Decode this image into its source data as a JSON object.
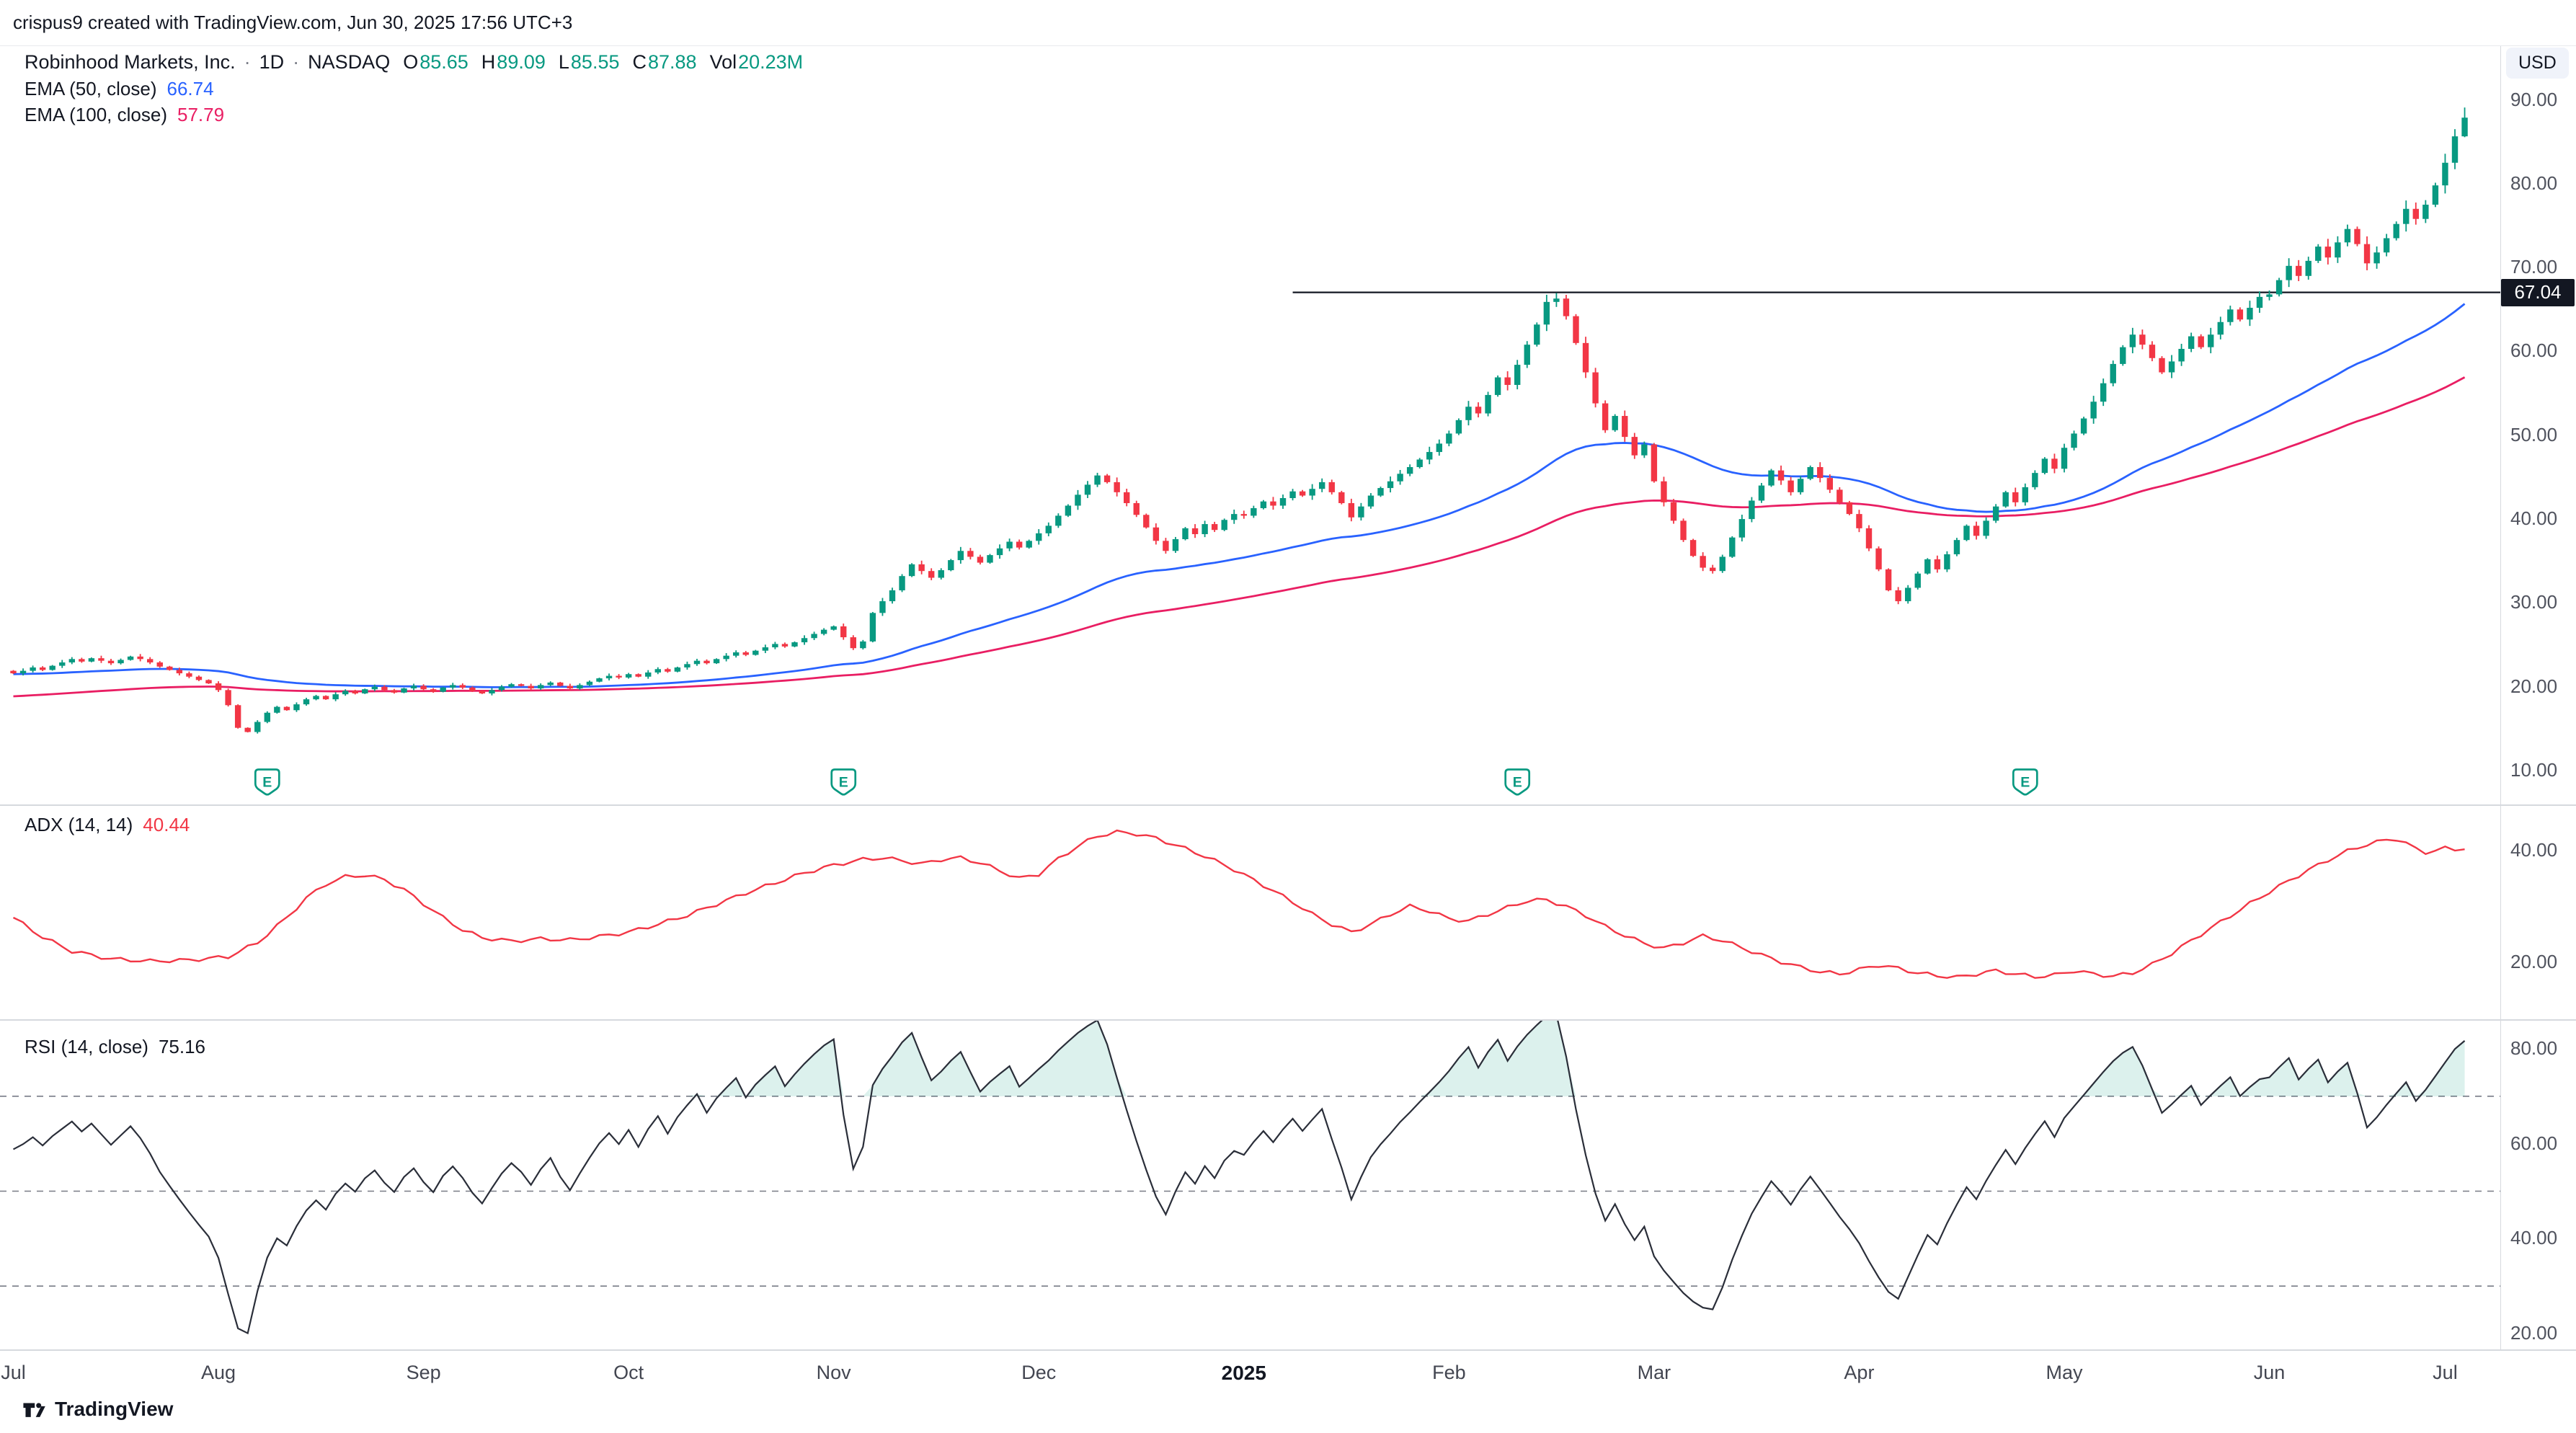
{
  "header": {
    "attribution": "crispus9 created with TradingView.com, Jun 30, 2025 17:56 UTC+3"
  },
  "legend": {
    "symbol": "Robinhood Markets, Inc.",
    "separator": "·",
    "interval": "1D",
    "exchange": "NASDAQ",
    "ohlcv": {
      "o_label": "O",
      "o": "85.65",
      "h_label": "H",
      "h": "89.09",
      "l_label": "L",
      "l": "85.55",
      "c_label": "C",
      "c": "87.88",
      "vol_label": "Vol",
      "vol": "20.23M"
    },
    "ema50_label": "EMA (50, close)",
    "ema50_value": "66.74",
    "ema100_label": "EMA (100, close)",
    "ema100_value": "57.79",
    "adx_label": "ADX (14, 14)",
    "adx_value": "40.44",
    "rsi_label": "RSI (14, close)",
    "rsi_value": "75.16"
  },
  "axes": {
    "currency": "USD",
    "price_line_label": "67.04"
  },
  "footer": {
    "logo_text": "TradingView"
  },
  "colors": {
    "up": "#089981",
    "down": "#F23645",
    "ema50": "#2962FF",
    "ema100": "#E91E63",
    "adx": "#F23645",
    "rsi": "#2A2E39",
    "price_line": "#131722",
    "level_dash": "#787B86",
    "overbought_fill": "rgba(8,153,129,0.14)"
  },
  "chart_data": {
    "type": "candlestick",
    "title": "Robinhood Markets, Inc. · 1D · NASDAQ",
    "x_range": [
      "Jul 2024",
      "Jul 2025"
    ],
    "price_axis": {
      "ylim": [
        8,
        92
      ],
      "ticks": [
        {
          "v": 90,
          "label": "90.00"
        },
        {
          "v": 80,
          "label": "80.00"
        },
        {
          "v": 70,
          "label": "70.00"
        },
        {
          "v": 60,
          "label": "60.00"
        },
        {
          "v": 50,
          "label": "50.00"
        },
        {
          "v": 40,
          "label": "40.00"
        },
        {
          "v": 30,
          "label": "30.00"
        },
        {
          "v": 20,
          "label": "20.00"
        },
        {
          "v": 10,
          "label": "10.00"
        }
      ]
    },
    "closes": [
      21.6,
      21.9,
      22.3,
      22.0,
      22.5,
      22.9,
      23.3,
      23.0,
      23.4,
      23.1,
      22.8,
      23.2,
      23.6,
      23.3,
      22.9,
      22.4,
      22.0,
      21.6,
      21.2,
      20.8,
      20.4,
      19.6,
      17.8,
      15.1,
      14.6,
      15.8,
      16.9,
      17.6,
      17.2,
      17.9,
      18.5,
      18.9,
      18.5,
      19.1,
      19.5,
      19.2,
      19.7,
      20.0,
      19.6,
      19.3,
      19.8,
      20.1,
      19.7,
      19.4,
      19.9,
      20.2,
      19.9,
      19.5,
      19.2,
      19.6,
      20.0,
      20.3,
      20.1,
      19.8,
      20.2,
      20.5,
      20.1,
      19.8,
      20.2,
      20.6,
      21.0,
      21.3,
      21.1,
      21.5,
      21.2,
      21.7,
      22.1,
      21.8,
      22.3,
      22.7,
      23.1,
      22.8,
      23.3,
      23.7,
      24.1,
      23.8,
      24.3,
      24.7,
      25.1,
      24.8,
      25.3,
      25.8,
      26.3,
      26.8,
      27.2,
      25.9,
      24.6,
      25.4,
      28.8,
      30.2,
      31.5,
      33.2,
      34.6,
      33.8,
      33.0,
      33.9,
      35.1,
      36.2,
      35.5,
      34.8,
      35.7,
      36.5,
      37.3,
      36.6,
      37.4,
      38.3,
      39.2,
      40.4,
      41.6,
      42.9,
      44.1,
      45.2,
      44.4,
      43.2,
      41.9,
      40.5,
      39.0,
      37.4,
      36.2,
      37.6,
      38.9,
      38.2,
      39.4,
      38.7,
      39.9,
      40.6,
      40.4,
      41.3,
      42.1,
      41.6,
      42.5,
      43.3,
      42.8,
      43.6,
      44.4,
      43.2,
      41.9,
      40.2,
      41.5,
      42.8,
      43.7,
      44.5,
      45.4,
      46.2,
      47.1,
      48.0,
      49.0,
      50.2,
      51.8,
      53.4,
      52.6,
      54.8,
      56.9,
      56.0,
      58.4,
      60.8,
      63.2,
      65.9,
      66.3,
      64.2,
      61.0,
      57.5,
      53.8,
      50.6,
      52.3,
      49.8,
      47.6,
      48.9,
      44.5,
      42.0,
      39.8,
      37.5,
      35.6,
      34.2,
      33.8,
      35.5,
      37.8,
      40.0,
      42.2,
      44.0,
      45.8,
      44.6,
      43.2,
      44.8,
      46.2,
      44.9,
      43.5,
      42.0,
      40.6,
      38.9,
      36.5,
      34.0,
      31.5,
      30.2,
      31.8,
      33.5,
      35.2,
      34.0,
      35.8,
      37.5,
      39.2,
      38.0,
      39.8,
      41.5,
      43.2,
      42.0,
      43.8,
      45.5,
      47.2,
      46.0,
      48.5,
      50.2,
      52.0,
      54.0,
      56.2,
      58.5,
      60.5,
      62.0,
      60.8,
      59.2,
      57.5,
      58.8,
      60.3,
      61.8,
      60.5,
      62.0,
      63.5,
      65.0,
      63.8,
      65.2,
      66.5,
      66.8,
      68.5,
      70.2,
      69.0,
      70.8,
      72.5,
      71.2,
      73.0,
      74.6,
      72.8,
      70.5,
      71.8,
      73.5,
      75.2,
      77.0,
      75.8,
      77.5,
      79.8,
      82.5,
      85.65,
      87.88
    ],
    "last_bar": {
      "open": 85.65,
      "high": 89.09,
      "low": 85.55,
      "close": 87.88
    },
    "ema50": {
      "period": 50,
      "seed": 21.5,
      "last": 66.74
    },
    "ema100": {
      "period": 100,
      "seed": 18.8,
      "last": 57.79
    },
    "price_line": {
      "price": 67.04,
      "start_bar": 131
    },
    "earnings_bars": [
      26,
      85,
      154,
      206
    ],
    "adx": {
      "period": "14, 14",
      "last": 40.44,
      "ylim": [
        10,
        48
      ],
      "ticks": [
        {
          "v": 40,
          "label": "40.00"
        },
        {
          "v": 20,
          "label": "20.00"
        }
      ],
      "anchors": [
        [
          0,
          28
        ],
        [
          3,
          24.5
        ],
        [
          6,
          22
        ],
        [
          10,
          20.6
        ],
        [
          14,
          20.2
        ],
        [
          18,
          20.4
        ],
        [
          22,
          21
        ],
        [
          25,
          23.5
        ],
        [
          28,
          28
        ],
        [
          30,
          31.5
        ],
        [
          32,
          34
        ],
        [
          34,
          35.3
        ],
        [
          36,
          35.6
        ],
        [
          38,
          34.8
        ],
        [
          40,
          33
        ],
        [
          42,
          30.5
        ],
        [
          44,
          28
        ],
        [
          46,
          25.8
        ],
        [
          48,
          24.4
        ],
        [
          51,
          23.8
        ],
        [
          54,
          24.2
        ],
        [
          57,
          24
        ],
        [
          60,
          24.6
        ],
        [
          63,
          25.4
        ],
        [
          66,
          26.8
        ],
        [
          69,
          28.4
        ],
        [
          72,
          30.4
        ],
        [
          75,
          32.4
        ],
        [
          78,
          34.2
        ],
        [
          81,
          36
        ],
        [
          84,
          37.4
        ],
        [
          87,
          38.4
        ],
        [
          89,
          38.7
        ],
        [
          91,
          38.2
        ],
        [
          93,
          37.6
        ],
        [
          95,
          38.4
        ],
        [
          97,
          38.7
        ],
        [
          99,
          37.8
        ],
        [
          101,
          36.4
        ],
        [
          103,
          35
        ],
        [
          105,
          35.8
        ],
        [
          107,
          38.5
        ],
        [
          109,
          40.8
        ],
        [
          111,
          42.6
        ],
        [
          113,
          43.3
        ],
        [
          115,
          43
        ],
        [
          117,
          42.2
        ],
        [
          119,
          41
        ],
        [
          122,
          39
        ],
        [
          125,
          36.6
        ],
        [
          128,
          33.8
        ],
        [
          131,
          30.8
        ],
        [
          133,
          28.6
        ],
        [
          135,
          26.8
        ],
        [
          137,
          25.4
        ],
        [
          139,
          26.8
        ],
        [
          141,
          28.6
        ],
        [
          143,
          30
        ],
        [
          145,
          29.2
        ],
        [
          147,
          27.8
        ],
        [
          149,
          27.4
        ],
        [
          151,
          28.6
        ],
        [
          153,
          29.8
        ],
        [
          155,
          31
        ],
        [
          157,
          31.2
        ],
        [
          159,
          30
        ],
        [
          161,
          28.4
        ],
        [
          163,
          26.4
        ],
        [
          165,
          24.8
        ],
        [
          167,
          23.4
        ],
        [
          169,
          22.5
        ],
        [
          171,
          23.5
        ],
        [
          173,
          24.7
        ],
        [
          175,
          23.9
        ],
        [
          177,
          22.6
        ],
        [
          179,
          21.3
        ],
        [
          181,
          20.1
        ],
        [
          183,
          19.1
        ],
        [
          185,
          18.3
        ],
        [
          187,
          17.9
        ],
        [
          189,
          18.7
        ],
        [
          191,
          19.5
        ],
        [
          193,
          18.9
        ],
        [
          195,
          18.1
        ],
        [
          197,
          17.6
        ],
        [
          199,
          17.3
        ],
        [
          201,
          17.9
        ],
        [
          203,
          18.5
        ],
        [
          205,
          17.9
        ],
        [
          207,
          17.4
        ],
        [
          209,
          17.7
        ],
        [
          211,
          18.5
        ],
        [
          213,
          17.9
        ],
        [
          215,
          17.5
        ],
        [
          217,
          18.1
        ],
        [
          219,
          19.6
        ],
        [
          221,
          21.6
        ],
        [
          223,
          23.9
        ],
        [
          225,
          26.1
        ],
        [
          227,
          28.3
        ],
        [
          229,
          30.5
        ],
        [
          231,
          32.6
        ],
        [
          233,
          34.6
        ],
        [
          235,
          36.5
        ],
        [
          237,
          38.3
        ],
        [
          239,
          39.9
        ],
        [
          241,
          41.1
        ],
        [
          243,
          41.9
        ],
        [
          244,
          42.1
        ],
        [
          245,
          41.3
        ],
        [
          246,
          40.3
        ],
        [
          247,
          39.7
        ],
        [
          248,
          40
        ],
        [
          249,
          40.4
        ],
        [
          250,
          40.2
        ],
        [
          251,
          40.44
        ]
      ]
    },
    "rsi": {
      "period": "14, close",
      "last": 75.16,
      "ylim": [
        17,
        86
      ],
      "ticks": [
        {
          "v": 80,
          "label": "80.00"
        },
        {
          "v": 60,
          "label": "60.00"
        },
        {
          "v": 40,
          "label": "40.00"
        },
        {
          "v": 20,
          "label": "20.00"
        }
      ],
      "levels": [
        70,
        50,
        30
      ],
      "overbought": 70
    },
    "months": [
      {
        "label": "Jul",
        "bar": 0
      },
      {
        "label": "Aug",
        "bar": 21
      },
      {
        "label": "Sep",
        "bar": 42
      },
      {
        "label": "Oct",
        "bar": 63
      },
      {
        "label": "Nov",
        "bar": 84
      },
      {
        "label": "Dec",
        "bar": 105
      },
      {
        "label": "2025",
        "bar": 126,
        "bold": true
      },
      {
        "label": "Feb",
        "bar": 147
      },
      {
        "label": "Mar",
        "bar": 168
      },
      {
        "label": "Apr",
        "bar": 189
      },
      {
        "label": "May",
        "bar": 210
      },
      {
        "label": "Jun",
        "bar": 231
      },
      {
        "label": "Jul",
        "bar": 249
      }
    ]
  }
}
